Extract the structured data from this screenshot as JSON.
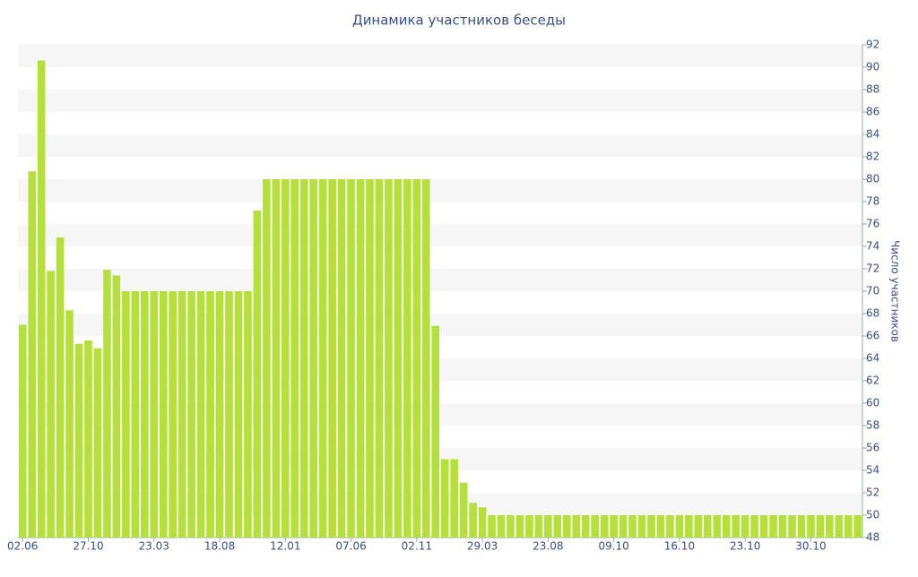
{
  "chart_data": {
    "type": "bar",
    "title": "Динамика участников беседы",
    "y_label": "Число участников",
    "categories": [
      "02.06",
      null,
      null,
      null,
      null,
      null,
      null,
      "27.10",
      null,
      null,
      null,
      null,
      null,
      null,
      "23.03",
      null,
      null,
      null,
      null,
      null,
      null,
      "18.08",
      null,
      null,
      null,
      null,
      null,
      null,
      "12.01",
      null,
      null,
      null,
      null,
      null,
      null,
      "07.06",
      null,
      null,
      null,
      null,
      null,
      null,
      "02.11",
      null,
      null,
      null,
      null,
      null,
      null,
      "29.03",
      null,
      null,
      null,
      null,
      null,
      null,
      "23.08",
      null,
      null,
      null,
      null,
      null,
      null,
      "09.10",
      null,
      null,
      null,
      null,
      null,
      null,
      "16.10",
      null,
      null,
      null,
      null,
      null,
      null,
      "23.10",
      null,
      null,
      null,
      null,
      null,
      null,
      "30.10",
      null,
      null,
      null,
      null,
      null
    ],
    "values": [
      67,
      80.7,
      90.6,
      71.8,
      74.8,
      68.3,
      65.3,
      65.6,
      64.9,
      71.9,
      71.4,
      70,
      70,
      70,
      70,
      70,
      70,
      70,
      70,
      70,
      70,
      70,
      70,
      70,
      70,
      77.2,
      80,
      80,
      80,
      80,
      80,
      80,
      80,
      80,
      80,
      80,
      80,
      80,
      80,
      80,
      80,
      80,
      80,
      80,
      66.9,
      55,
      55,
      52.9,
      51.1,
      50.7,
      50,
      50,
      50,
      50,
      50,
      50,
      50,
      50,
      50,
      50,
      50,
      50,
      50,
      50,
      50,
      50,
      50,
      50,
      50,
      50,
      50,
      50,
      50,
      50,
      50,
      50,
      50,
      50,
      50,
      50,
      50,
      50,
      50,
      50,
      50,
      50,
      50,
      50,
      50,
      50
    ],
    "color": "#b5e03a",
    "ylim": [
      48,
      92
    ],
    "yticks": [
      48,
      50,
      52,
      54,
      56,
      58,
      60,
      62,
      64,
      66,
      68,
      70,
      72,
      74,
      76,
      78,
      80,
      82,
      84,
      86,
      88,
      90,
      92
    ],
    "y_axis_side": "right",
    "grid": "bands"
  }
}
